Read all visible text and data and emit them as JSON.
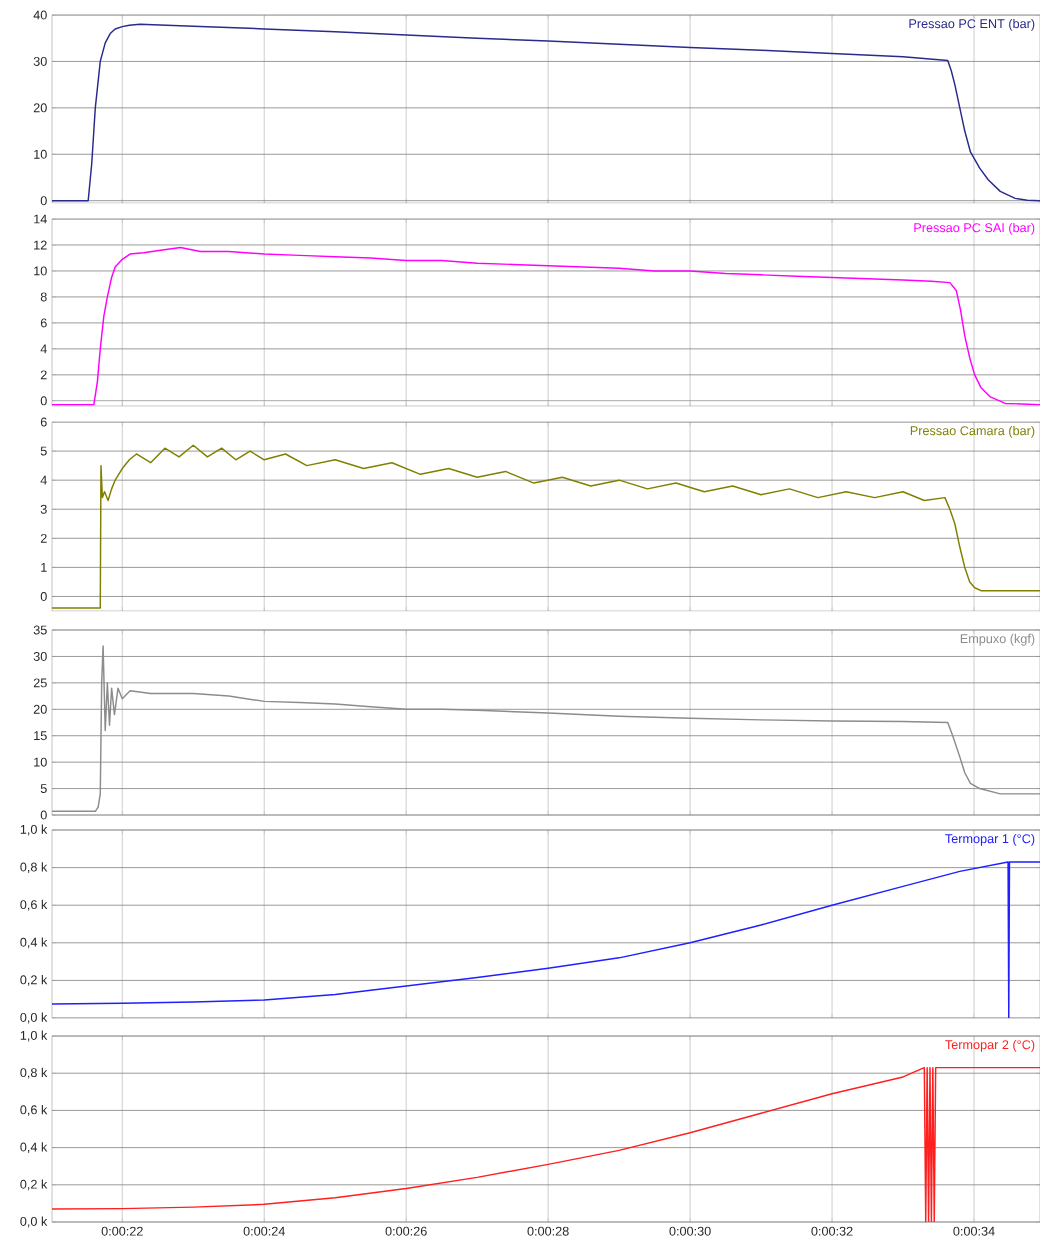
{
  "chart_data": [
    {
      "type": "line",
      "xlim": [
        21.01,
        34.93
      ],
      "ylim": [
        -0.5,
        40
      ],
      "xticks": [
        {
          "value": 22,
          "label": null
        },
        {
          "value": 24,
          "label": null
        },
        {
          "value": 26,
          "label": null
        },
        {
          "value": 28,
          "label": null
        },
        {
          "value": 30,
          "label": null
        },
        {
          "value": 32,
          "label": null
        },
        {
          "value": 34,
          "label": null
        }
      ],
      "yticks": [
        0,
        10,
        20,
        30,
        40
      ],
      "tick_labels": "y",
      "grid": true,
      "legend": "top right",
      "x": [
        21.01,
        21.52,
        21.57,
        21.62,
        21.69,
        21.76,
        21.83,
        21.9,
        22.0,
        22.1,
        22.25,
        23,
        24,
        25,
        26,
        27,
        28,
        29,
        30,
        31,
        32,
        33,
        33.63,
        33.68,
        33.73,
        33.8,
        33.87,
        33.95,
        34.08,
        34.2,
        34.37,
        34.58,
        34.75,
        34.93
      ],
      "series": [
        {
          "name": "Pressao PC ENT (bar)",
          "color": "#2a2a8c",
          "values": [
            0,
            0,
            8,
            20,
            30,
            34,
            36,
            37,
            37.5,
            37.8,
            38,
            37.6,
            37,
            36.4,
            35.7,
            35,
            34.4,
            33.7,
            33,
            32.4,
            31.7,
            31,
            30.2,
            28,
            25,
            20,
            15,
            10.5,
            7,
            4.5,
            2,
            0.5,
            0.1,
            0
          ]
        }
      ]
    },
    {
      "type": "line",
      "xlim": [
        21.01,
        34.93
      ],
      "ylim": [
        -0.4,
        14
      ],
      "xticks": [
        {
          "value": 22,
          "label": null
        },
        {
          "value": 24,
          "label": null
        },
        {
          "value": 26,
          "label": null
        },
        {
          "value": 28,
          "label": null
        },
        {
          "value": 30,
          "label": null
        },
        {
          "value": 32,
          "label": null
        },
        {
          "value": 34,
          "label": null
        }
      ],
      "yticks": [
        0,
        2,
        4,
        6,
        8,
        10,
        12,
        14
      ],
      "tick_labels": "y",
      "grid": true,
      "legend": "top right",
      "x": [
        21.01,
        21.6,
        21.65,
        21.69,
        21.74,
        21.79,
        21.85,
        21.9,
        22.0,
        22.11,
        22.3,
        22.54,
        22.82,
        23.1,
        23.5,
        24,
        24.5,
        25,
        25.5,
        26,
        26.5,
        27,
        27.5,
        28,
        28.5,
        29,
        29.5,
        30,
        30.5,
        31,
        31.5,
        32,
        32.5,
        33,
        33.4,
        33.66,
        33.75,
        33.81,
        33.87,
        33.94,
        34.01,
        34.1,
        34.23,
        34.44,
        34.93
      ],
      "series": [
        {
          "name": "Pressao PC SAI (bar)",
          "color": "#ff00ff",
          "values": [
            -0.3,
            -0.3,
            1.5,
            4,
            6.5,
            8,
            9.5,
            10.3,
            10.9,
            11.3,
            11.4,
            11.6,
            11.8,
            11.5,
            11.5,
            11.3,
            11.2,
            11.1,
            11.0,
            10.8,
            10.8,
            10.6,
            10.5,
            10.4,
            10.3,
            10.2,
            10.0,
            10.0,
            9.8,
            9.7,
            9.6,
            9.5,
            9.4,
            9.3,
            9.2,
            9.1,
            8.5,
            7,
            5,
            3.3,
            2,
            1,
            0.3,
            -0.2,
            -0.3
          ]
        }
      ]
    },
    {
      "type": "line",
      "xlim": [
        21.01,
        34.93
      ],
      "ylim": [
        -0.5,
        6
      ],
      "xticks": [
        {
          "value": 22,
          "label": null
        },
        {
          "value": 24,
          "label": null
        },
        {
          "value": 26,
          "label": null
        },
        {
          "value": 28,
          "label": null
        },
        {
          "value": 30,
          "label": null
        },
        {
          "value": 32,
          "label": null
        },
        {
          "value": 34,
          "label": null
        }
      ],
      "yticks": [
        0,
        1,
        2,
        3,
        4,
        5,
        6
      ],
      "tick_labels": "y",
      "grid": true,
      "legend": "top right",
      "x": [
        21.01,
        21.69,
        21.7,
        21.72,
        21.75,
        21.8,
        21.85,
        21.9,
        22.0,
        22.1,
        22.2,
        22.4,
        22.6,
        22.8,
        23.0,
        23.2,
        23.4,
        23.6,
        23.8,
        24.0,
        24.3,
        24.6,
        25.0,
        25.4,
        25.8,
        26.2,
        26.6,
        27.0,
        27.4,
        27.8,
        28.2,
        28.6,
        29.0,
        29.4,
        29.8,
        30.2,
        30.6,
        31.0,
        31.4,
        31.8,
        32.2,
        32.6,
        33.0,
        33.3,
        33.59,
        33.66,
        33.73,
        33.8,
        33.87,
        33.94,
        34.01,
        34.1,
        34.93
      ],
      "series": [
        {
          "name": "Pressao Camara (bar)",
          "color": "#808000",
          "values": [
            -0.4,
            -0.4,
            4.5,
            3.4,
            3.6,
            3.3,
            3.7,
            4.0,
            4.4,
            4.7,
            4.9,
            4.6,
            5.1,
            4.8,
            5.2,
            4.8,
            5.1,
            4.7,
            5.0,
            4.7,
            4.9,
            4.5,
            4.7,
            4.4,
            4.6,
            4.2,
            4.4,
            4.1,
            4.3,
            3.9,
            4.1,
            3.8,
            4.0,
            3.7,
            3.9,
            3.6,
            3.8,
            3.5,
            3.7,
            3.4,
            3.6,
            3.4,
            3.6,
            3.3,
            3.4,
            3.0,
            2.5,
            1.7,
            1.0,
            0.5,
            0.3,
            0.2,
            0.2
          ]
        }
      ]
    },
    {
      "type": "line",
      "xlim": [
        21.01,
        34.93
      ],
      "ylim": [
        0,
        35
      ],
      "xticks": [
        {
          "value": 22,
          "label": null
        },
        {
          "value": 24,
          "label": null
        },
        {
          "value": 26,
          "label": null
        },
        {
          "value": 28,
          "label": null
        },
        {
          "value": 30,
          "label": null
        },
        {
          "value": 32,
          "label": null
        },
        {
          "value": 34,
          "label": null
        }
      ],
      "yticks": [
        0,
        5,
        10,
        15,
        20,
        25,
        30,
        35
      ],
      "tick_labels": "y",
      "grid": true,
      "legend": "top right",
      "x": [
        21.01,
        21.62,
        21.66,
        21.69,
        21.71,
        21.73,
        21.76,
        21.79,
        21.82,
        21.85,
        21.89,
        21.94,
        22.0,
        22.11,
        22.4,
        23.0,
        23.5,
        24.0,
        24.5,
        25.0,
        25.5,
        26.0,
        26.5,
        27.0,
        28.0,
        29.0,
        30.0,
        31.0,
        32.0,
        33.0,
        33.63,
        33.7,
        33.8,
        33.87,
        33.95,
        34.08,
        34.37,
        34.93
      ],
      "series": [
        {
          "name": "Empuxo (kgf)",
          "color": "#8c8c8c",
          "values": [
            0.7,
            0.7,
            1.5,
            4,
            25,
            32,
            16,
            25,
            17,
            24,
            19,
            24,
            22,
            23.5,
            23,
            23,
            22.5,
            21.5,
            21.3,
            21,
            20.5,
            20,
            20,
            19.8,
            19.3,
            18.7,
            18.3,
            18,
            17.8,
            17.7,
            17.5,
            15,
            11,
            8,
            6,
            5,
            4,
            4
          ]
        }
      ]
    },
    {
      "type": "line",
      "xlim": [
        21.01,
        34.93
      ],
      "ylim": [
        0,
        1000
      ],
      "xticks": [
        {
          "value": 22,
          "label": null
        },
        {
          "value": 24,
          "label": null
        },
        {
          "value": 26,
          "label": null
        },
        {
          "value": 28,
          "label": null
        },
        {
          "value": 30,
          "label": null
        },
        {
          "value": 32,
          "label": null
        },
        {
          "value": 34,
          "label": null
        }
      ],
      "yticks": [
        {
          "value": 0,
          "label": "0,0 k"
        },
        {
          "value": 200,
          "label": "0,2 k"
        },
        {
          "value": 400,
          "label": "0,4 k"
        },
        {
          "value": 600,
          "label": "0,6 k"
        },
        {
          "value": 800,
          "label": "0,8 k"
        },
        {
          "value": 1000,
          "label": "1,0 k"
        }
      ],
      "tick_labels": "y",
      "grid": true,
      "legend": "top right",
      "x": [
        21.01,
        22,
        23,
        24,
        25,
        26,
        27,
        28,
        29,
        30,
        31,
        32,
        33,
        33.8,
        34.48,
        34.49,
        34.5,
        34.93
      ],
      "series": [
        {
          "name": "Termopar 1 (°C)",
          "color": "#1f1fff",
          "values": [
            75,
            78,
            85,
            96,
            125,
            170,
            215,
            265,
            320,
            400,
            495,
            600,
            700,
            780,
            830,
            0,
            830,
            830
          ]
        }
      ]
    },
    {
      "type": "line",
      "xlim": [
        21.01,
        34.93
      ],
      "ylim": [
        0,
        1000
      ],
      "xticks": [
        {
          "value": 22,
          "label": "0:00:22"
        },
        {
          "value": 24,
          "label": "0:00:24"
        },
        {
          "value": 26,
          "label": "0:00:26"
        },
        {
          "value": 28,
          "label": "0:00:28"
        },
        {
          "value": 30,
          "label": "0:00:30"
        },
        {
          "value": 32,
          "label": "0:00:32"
        },
        {
          "value": 34,
          "label": "0:00:34"
        }
      ],
      "yticks": [
        {
          "value": 0,
          "label": "0,0 k"
        },
        {
          "value": 200,
          "label": "0,2 k"
        },
        {
          "value": 400,
          "label": "0,4 k"
        },
        {
          "value": 600,
          "label": "0,6 k"
        },
        {
          "value": 800,
          "label": "0,8 k"
        },
        {
          "value": 1000,
          "label": "1,0 k"
        }
      ],
      "grid": true,
      "legend": "top right",
      "x": [
        21.01,
        22,
        23,
        24,
        25,
        26,
        27,
        28,
        29,
        30,
        31,
        32,
        33,
        33.3,
        33.32,
        33.34,
        33.36,
        33.38,
        33.4,
        33.42,
        33.44,
        33.46,
        33.48,
        34.93
      ],
      "series": [
        {
          "name": "Termopar 2 (°C)",
          "color": "#ff1f1f",
          "values": [
            70,
            72,
            80,
            95,
            130,
            180,
            240,
            310,
            385,
            480,
            585,
            690,
            780,
            830,
            0,
            830,
            0,
            830,
            0,
            830,
            0,
            830,
            830,
            830
          ]
        }
      ]
    }
  ]
}
